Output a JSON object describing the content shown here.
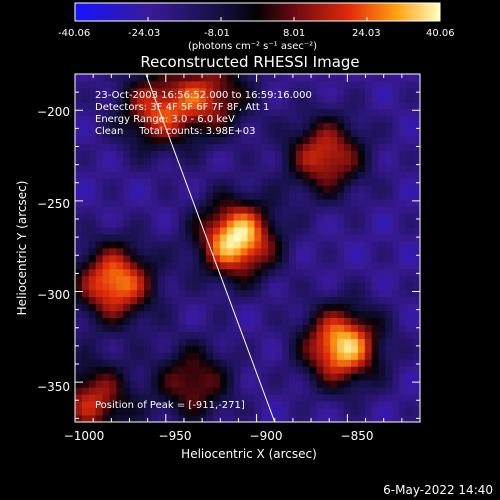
{
  "colorbar": {
    "tick_labels": [
      "-40.06",
      "-24.03",
      "-8.01",
      "8.01",
      "24.03",
      "40.06"
    ],
    "range": [
      -40.06,
      40.06
    ],
    "unit_label": "(photons cm⁻² s⁻¹ asec⁻²)"
  },
  "chart_data": {
    "type": "heatmap",
    "title": "Reconstructed RHESSI Image",
    "xlabel": "Heliocentric X (arcsec)",
    "ylabel": "Heliocentric Y (arcsec)",
    "xlim": [
      -1000,
      -810
    ],
    "ylim": [
      -372,
      -180
    ],
    "x_ticks": [
      -1000,
      -950,
      -900,
      -850
    ],
    "y_ticks": [
      -200,
      -250,
      -300,
      -350
    ],
    "x_tick_labels": [
      "−1000",
      "−950",
      "−900",
      "−850"
    ],
    "y_tick_labels": [
      "−200",
      "−250",
      "−300",
      "−350"
    ],
    "annotations": [
      "23-Oct-2003 16:56:52.000 to 16:59:16.000",
      "Detectors: 3F 4F 5F 6F 7F 8F, Att 1",
      "Energy Range: 3.0 - 6.0 keV",
      "Clean     Total counts: 3.98E+03"
    ],
    "peak_label": "Position of Peak = [-911,-271]",
    "peak": [
      -911,
      -271
    ],
    "limb_line": [
      [
        -961,
        -180
      ],
      [
        -890,
        -372
      ]
    ],
    "sources": [
      {
        "x": -911,
        "y": -271,
        "value": 40.06
      },
      {
        "x": -853,
        "y": -330,
        "value": 36.0
      },
      {
        "x": -978,
        "y": -295,
        "value": 30.0
      },
      {
        "x": -862,
        "y": -225,
        "value": 20.0
      },
      {
        "x": -955,
        "y": -200,
        "value": 18.0
      },
      {
        "x": -925,
        "y": -192,
        "value": 14.0
      },
      {
        "x": -990,
        "y": -360,
        "value": 16.0
      },
      {
        "x": -935,
        "y": -350,
        "value": 10.0
      }
    ]
  },
  "footer": {
    "date": "6-May-2022 14:40"
  }
}
